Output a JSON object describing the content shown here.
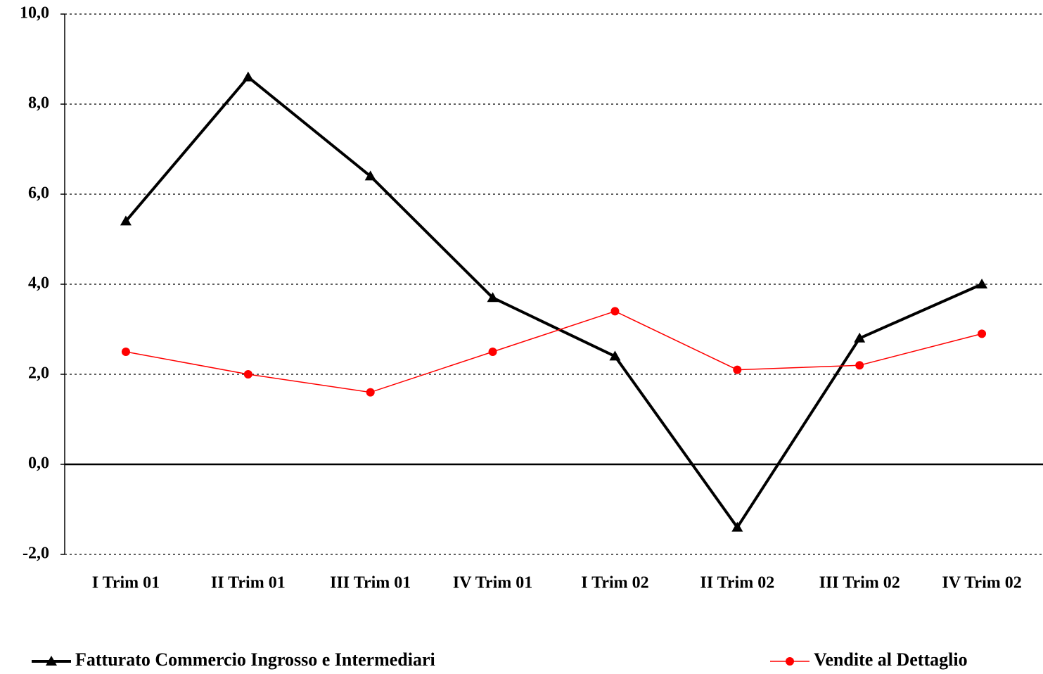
{
  "chart_data": {
    "type": "line",
    "categories": [
      "I Trim 01",
      "II Trim 01",
      "III Trim 01",
      "IV Trim 01",
      "I Trim 02",
      "II Trim 02",
      "III Trim 02",
      "IV Trim 02"
    ],
    "series": [
      {
        "name": "Fatturato Commercio Ingrosso e Intermediari",
        "color": "#000000",
        "marker": "triangle",
        "line_width": 4,
        "values": [
          5.4,
          8.6,
          6.4,
          3.7,
          2.4,
          -1.4,
          2.8,
          4.0
        ]
      },
      {
        "name": "Vendite al Dettaglio",
        "color": "#ff0000",
        "marker": "circle",
        "line_width": 1.5,
        "values": [
          2.5,
          2.0,
          1.6,
          2.5,
          3.4,
          2.1,
          2.2,
          2.9
        ]
      }
    ],
    "ylim": [
      -2,
      10
    ],
    "yticks": [
      {
        "value": -2,
        "label": "-2,0"
      },
      {
        "value": 0,
        "label": "0,0"
      },
      {
        "value": 2,
        "label": "2,0"
      },
      {
        "value": 4,
        "label": "4,0"
      },
      {
        "value": 6,
        "label": "6,0"
      },
      {
        "value": 8,
        "label": "8,0"
      },
      {
        "value": 10,
        "label": "10,0"
      }
    ],
    "grid": true,
    "legend": "bottom"
  }
}
